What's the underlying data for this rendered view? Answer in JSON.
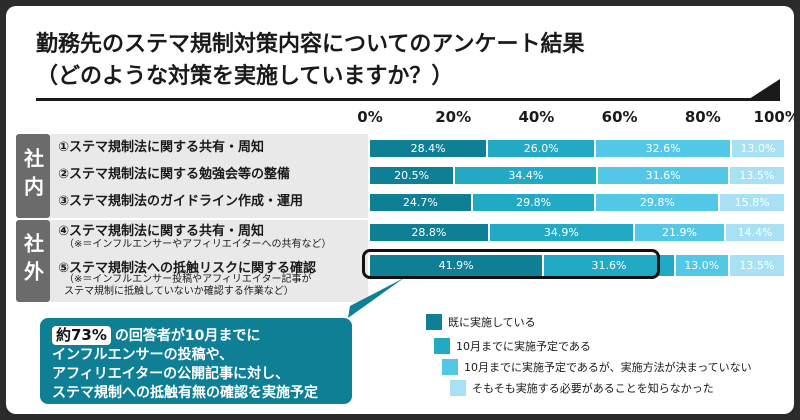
{
  "header": {
    "title": "勤務先のステマ規制対策内容についてのアンケート結果",
    "subtitle": "（どのような対策を実施していますか？）"
  },
  "groups": {
    "internal": "社内",
    "external": "社外"
  },
  "rows": [
    {
      "label": "①ステマ規制法に関する共有・周知",
      "note": ""
    },
    {
      "label": "②ステマ規制法に関する勉強会等の整備",
      "note": ""
    },
    {
      "label": "③ステマ規制法のガイドライン作成・運用",
      "note": ""
    },
    {
      "label": "④ステマ規制法に関する共有・周知",
      "note": "（※＝インフルエンサーやアフィリエイターへの共有など）"
    },
    {
      "label": "⑤ステマ規制法への抵触リスクに関する確認",
      "note": "（※＝インフルエンサー投稿やアフィリエイター記事が\nステマ規制に抵触していないか確認する作業など）"
    }
  ],
  "callout": {
    "badge": "約73%",
    "line1": "の回答者が10月までに",
    "line2": "インフルエンサーの投稿や、",
    "line3": "アフィリエイターの公開記事に対し、",
    "line4": "ステマ規制への抵触有無の確認を実施予定"
  },
  "chart_data": {
    "type": "bar",
    "orientation": "horizontal",
    "stacked": true,
    "title": "勤務先のステマ規制対策内容についてのアンケート結果",
    "subtitle": "（どのような対策を実施していますか？）",
    "xlim": [
      0,
      100
    ],
    "x_ticks": [
      "0%",
      "20%",
      "40%",
      "60%",
      "80%",
      "100%"
    ],
    "categories": [
      "①ステマ規制法に関する共有・周知",
      "②ステマ規制法に関する勉強会等の整備",
      "③ステマ規制法のガイドライン作成・運用",
      "④ステマ規制法に関する共有・周知",
      "⑤ステマ規制法への抵触リスクに関する確認"
    ],
    "series": [
      {
        "name": "既に実施している",
        "color": "#0f7f95",
        "values": [
          28.4,
          20.5,
          24.7,
          28.8,
          41.9
        ]
      },
      {
        "name": "10月までに実施予定である",
        "color": "#22a9c4",
        "values": [
          26.0,
          34.4,
          29.8,
          34.9,
          31.6
        ]
      },
      {
        "name": "10月までに実施予定であるが、実施方法が決まっていない",
        "color": "#52c7e6",
        "values": [
          32.6,
          31.6,
          29.8,
          21.9,
          13.0
        ]
      },
      {
        "name": "そもそも実施する必要があることを知らなかった",
        "color": "#a7e1f3",
        "values": [
          13.0,
          13.5,
          15.8,
          14.4,
          13.5
        ]
      }
    ],
    "data_labels": [
      [
        "28.4%",
        "26.0%",
        "32.6%",
        "13.0%"
      ],
      [
        "20.5%",
        "34.4%",
        "31.6%",
        "13.5%"
      ],
      [
        "24.7%",
        "29.8%",
        "29.8%",
        "15.8%"
      ],
      [
        "28.8%",
        "34.9%",
        "21.9%",
        "14.4%"
      ],
      [
        "41.9%",
        "31.6%",
        "13.0%",
        "13.5%"
      ]
    ],
    "legend_position": "bottom-right",
    "highlighted_row": 4
  }
}
